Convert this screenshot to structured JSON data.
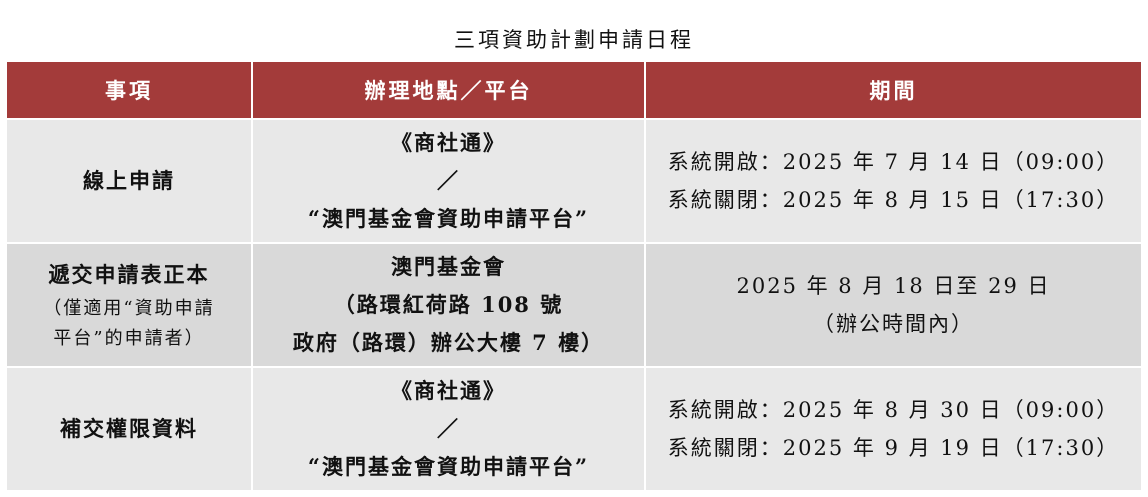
{
  "title": "三項資助計劃申請日程",
  "headers": [
    "事項",
    "辦理地點／平台",
    "期間"
  ],
  "rows": [
    {
      "item": "線上申請",
      "note_lines": [],
      "place_lines": [
        "《商社通》",
        "／",
        "“澳門基金會資助申請平台”"
      ],
      "period_lines": [
        "系統開啟：2025 年 7 月 14 日（09:00）",
        "系統關閉：2025 年 8 月 15 日（17:30）"
      ]
    },
    {
      "item": "遞交申請表正本",
      "note_lines": [
        "（僅適用“資助申請",
        "平台”的申請者）"
      ],
      "place_lines": [
        "澳門基金會",
        "（路環紅荷路 108 號",
        "政府（路環）辦公大樓 7 樓）"
      ],
      "period_lines": [
        "2025 年 8 月 18 日至 29 日",
        "（辦公時間內）"
      ]
    },
    {
      "item": "補交權限資料",
      "note_lines": [],
      "place_lines": [
        "《商社通》",
        "／",
        "“澳門基金會資助申請平台”"
      ],
      "period_lines": [
        "系統開啟：2025 年 8 月 30 日（09:00）",
        "系統關閉：2025 年 9 月 19 日（17:30）"
      ]
    }
  ],
  "colors": {
    "header_bg": "#a33b3a",
    "row_bg": "#e8e8e8",
    "row_alt_bg": "#d9d9d9"
  }
}
